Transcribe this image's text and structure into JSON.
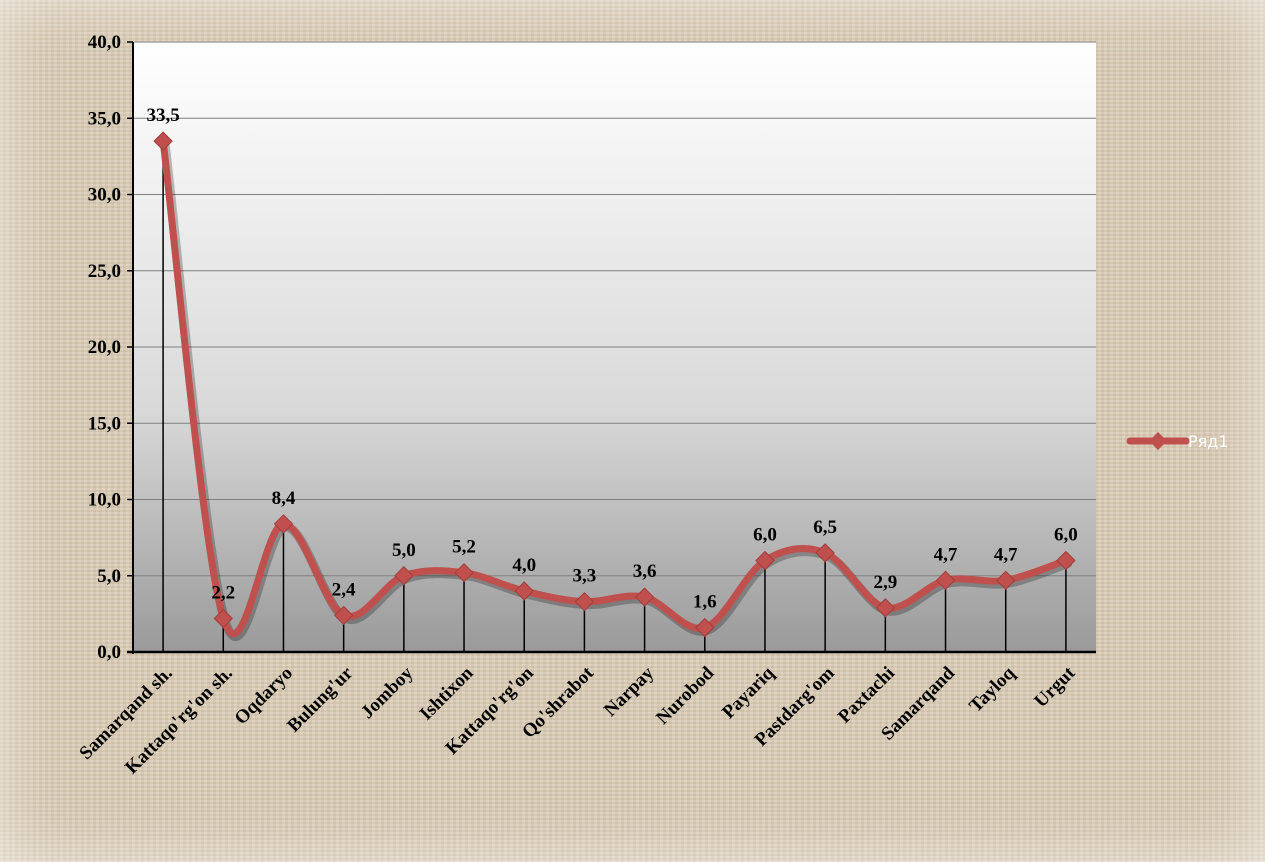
{
  "chart_data": {
    "type": "line",
    "categories": [
      "Samarqand sh.",
      "Kattaqo'rg'on sh.",
      "Oqdaryo",
      "Bulung'ur",
      "Jomboy",
      "Ishtixon",
      "Kattaqo'rg'on",
      "Qo'shrabot",
      "Narpay",
      "Nurobod",
      "Payariq",
      "Pastdarg'om",
      "Paxtachi",
      "Samarqand",
      "Tayloq",
      "Urgut"
    ],
    "series": [
      {
        "name": "Ряд1",
        "values": [
          33.5,
          2.2,
          8.4,
          2.4,
          5.0,
          5.2,
          4.0,
          3.3,
          3.6,
          1.6,
          6.0,
          6.5,
          2.9,
          4.7,
          4.7,
          6.0
        ],
        "labels": [
          "33,5",
          "2,2",
          "8,4",
          "2,4",
          "5,0",
          "5,2",
          "4,0",
          "3,3",
          "3,6",
          "1,6",
          "6,0",
          "6,5",
          "2,9",
          "4,7",
          "4,7",
          "6,0"
        ],
        "color": "#c0504d"
      }
    ],
    "ylim": [
      0,
      40
    ],
    "yticks": [
      0,
      5,
      10,
      15,
      20,
      25,
      30,
      35,
      40
    ],
    "ytick_labels": [
      "0,0",
      "5,0",
      "10,0",
      "15,0",
      "20,0",
      "25,0",
      "30,0",
      "35,0",
      "40,0"
    ],
    "title": "",
    "xlabel": "",
    "ylabel": "",
    "grid": true,
    "smooth": true,
    "drop_lines": true,
    "legend": {
      "position": "right"
    },
    "colors": {
      "plot_top": "#ffffff",
      "plot_bottom": "#9a9a9a",
      "grid": "#808080",
      "series": "#c0504d"
    }
  }
}
